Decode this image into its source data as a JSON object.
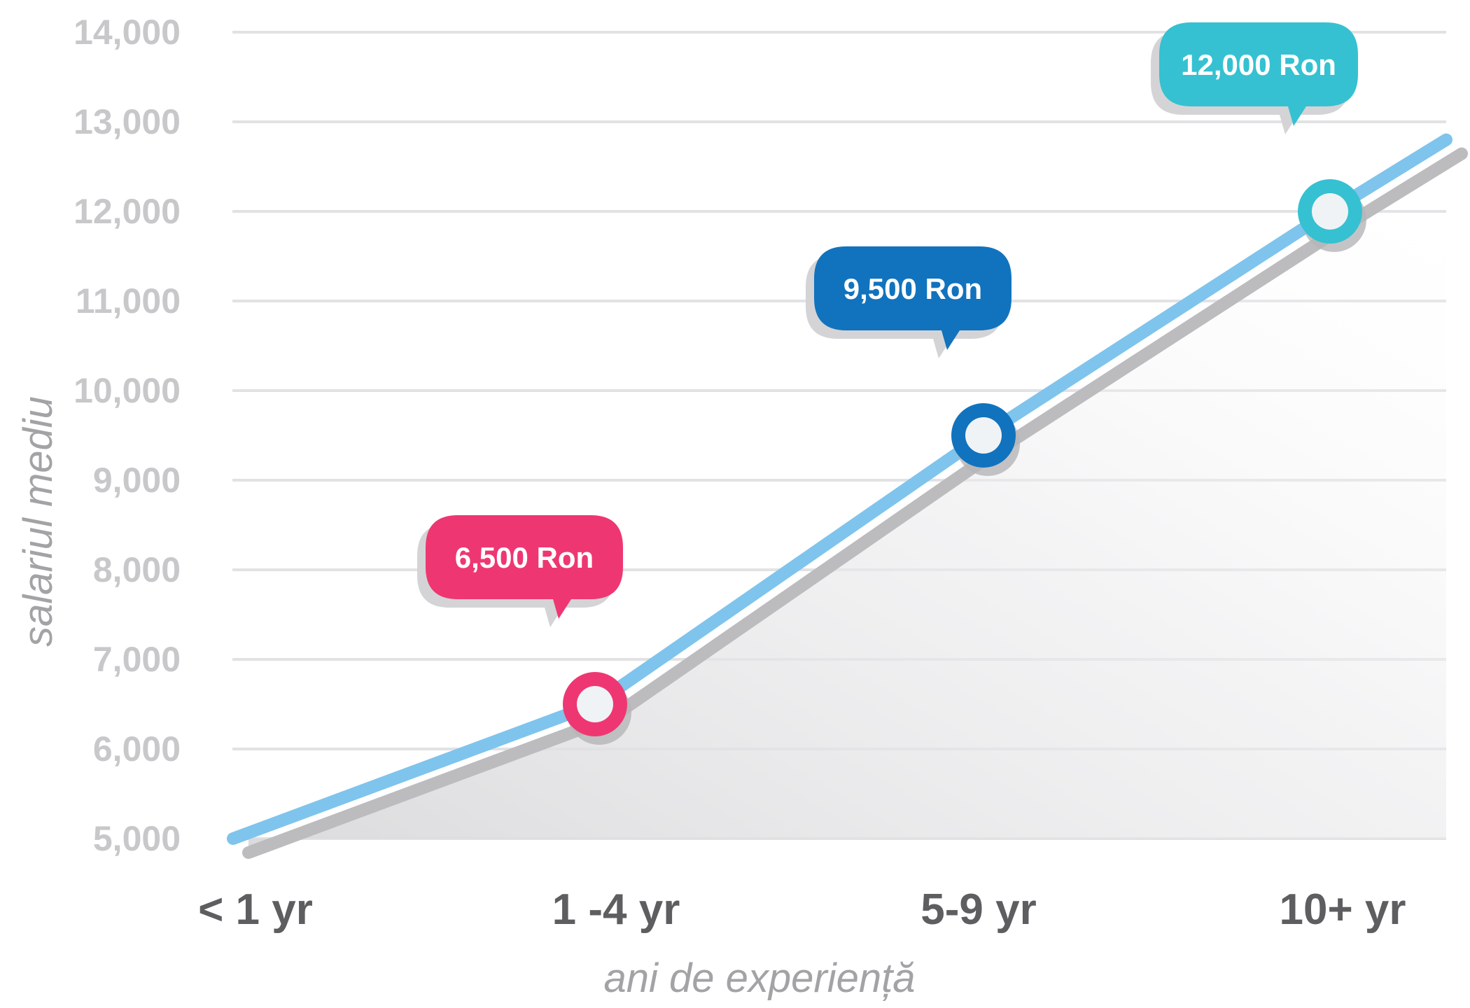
{
  "chart_data": {
    "type": "line",
    "categories": [
      "< 1 yr",
      "1 -4 yr",
      "5-9 yr",
      "10+ yr"
    ],
    "series": [
      {
        "values": [
          5000,
          6500,
          9500,
          12000
        ]
      }
    ],
    "line_end_value": 12800,
    "ylim": [
      5000,
      14000
    ],
    "yticks": [
      {
        "value": 14000,
        "label": "14,000"
      },
      {
        "value": 13000,
        "label": "13,000"
      },
      {
        "value": 12000,
        "label": "12,000"
      },
      {
        "value": 11000,
        "label": "11,000"
      },
      {
        "value": 10000,
        "label": "10,000"
      },
      {
        "value": 9000,
        "label": "9,000"
      },
      {
        "value": 8000,
        "label": "8,000"
      },
      {
        "value": 7000,
        "label": "7,000"
      },
      {
        "value": 6000,
        "label": "6,000"
      },
      {
        "value": 5000,
        "label": "5,000"
      }
    ],
    "xlabel": "ani de experiență",
    "ylabel": "salariul mediu",
    "grid": true,
    "annotations": [
      {
        "category": "1 -4 yr",
        "value": 6500,
        "label": "6,500 Ron",
        "color": "#ee3772"
      },
      {
        "category": "5-9 yr",
        "value": 9500,
        "label": "9,500 Ron",
        "color": "#1173bd"
      },
      {
        "category": "10+ yr",
        "value": 12000,
        "label": "12,000 Ron",
        "color": "#35c1d1"
      }
    ],
    "colors": {
      "line": "#7fc4ec",
      "shadow": "#bcbcbf",
      "grid": "#e2e2e4",
      "marker_fill": "#f0f3f6"
    }
  }
}
